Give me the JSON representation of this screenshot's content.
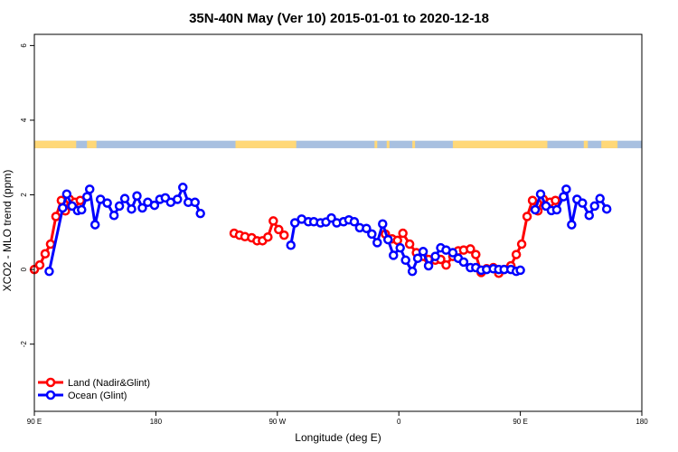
{
  "chart_data": {
    "type": "line",
    "title": "35N-40N May (Ver 10)   2015-01-01 to 2020-12-18",
    "xlabel": "Longitude (deg E)",
    "ylabel": "XCO2 - MLO trend (ppm)",
    "xlim": [
      90,
      540
    ],
    "ylim": [
      -3.8,
      6.3
    ],
    "x_ticks": [
      {
        "value": 90,
        "label": "90 E"
      },
      {
        "value": 180,
        "label": "180"
      },
      {
        "value": 270,
        "label": "90 W"
      },
      {
        "value": 360,
        "label": "0"
      },
      {
        "value": 450,
        "label": "90 E"
      },
      {
        "value": 540,
        "label": "180"
      }
    ],
    "y_ticks": [
      {
        "value": -2,
        "label": "-2"
      },
      {
        "value": 0,
        "label": "0"
      },
      {
        "value": 2,
        "label": "2"
      },
      {
        "value": 4,
        "label": "4"
      },
      {
        "value": 6,
        "label": "6"
      }
    ],
    "grid": false,
    "legend_position": "bottom-left",
    "land_ocean_bar": {
      "y_range": [
        3.25,
        3.45
      ],
      "land_color": "#FFD878",
      "ocean_color": "#A8C0E0",
      "land_segments": [
        [
          90,
          121
        ],
        [
          104,
          106
        ],
        [
          116,
          118
        ],
        [
          129,
          136
        ],
        [
          239,
          284
        ],
        [
          342,
          344
        ],
        [
          351,
          353
        ],
        [
          370,
          372
        ],
        [
          400,
          470
        ],
        [
          497,
          500
        ],
        [
          510,
          522
        ]
      ]
    },
    "series": [
      {
        "name": "Land (Nadir&Glint)",
        "color": "#FF0000",
        "segments": [
          [
            [
              90,
              0.0
            ],
            [
              94,
              0.12
            ],
            [
              98,
              0.42
            ],
            [
              102,
              0.68
            ],
            [
              106,
              1.42
            ],
            [
              110,
              1.85
            ],
            [
              113,
              1.57
            ],
            [
              116,
              1.88
            ],
            [
              120,
              1.8
            ],
            [
              124,
              1.85
            ]
          ],
          [
            [
              238,
              0.97
            ],
            [
              242,
              0.92
            ],
            [
              246,
              0.88
            ],
            [
              251,
              0.85
            ],
            [
              255,
              0.77
            ],
            [
              259,
              0.77
            ],
            [
              263,
              0.87
            ],
            [
              267,
              1.3
            ],
            [
              271,
              1.07
            ],
            [
              275,
              0.92
            ]
          ],
          [
            [
              350,
              0.95
            ],
            [
              355,
              0.82
            ],
            [
              359,
              0.78
            ],
            [
              363,
              0.97
            ],
            [
              368,
              0.68
            ],
            [
              373,
              0.45
            ],
            [
              378,
              0.35
            ],
            [
              382,
              0.27
            ],
            [
              387,
              0.25
            ],
            [
              391,
              0.27
            ],
            [
              395,
              0.12
            ],
            [
              400,
              0.35
            ],
            [
              404,
              0.5
            ],
            [
              408,
              0.52
            ],
            [
              413,
              0.55
            ],
            [
              417,
              0.4
            ],
            [
              421,
              -0.08
            ],
            [
              425,
              0.02
            ],
            [
              430,
              0.05
            ],
            [
              434,
              -0.1
            ],
            [
              438,
              0.0
            ],
            [
              443,
              0.1
            ],
            [
              447,
              0.4
            ],
            [
              451,
              0.68
            ],
            [
              455,
              1.42
            ],
            [
              459,
              1.85
            ],
            [
              463,
              1.57
            ],
            [
              467,
              1.88
            ],
            [
              472,
              1.8
            ],
            [
              476,
              1.85
            ]
          ]
        ]
      },
      {
        "name": "Ocean (Glint)",
        "color": "#0000FF",
        "segments": [
          [
            [
              101,
              -0.05
            ],
            [
              111,
              1.65
            ],
            [
              114,
              2.02
            ],
            [
              118,
              1.7
            ],
            [
              122,
              1.58
            ],
            [
              125,
              1.6
            ],
            [
              129,
              1.95
            ],
            [
              131,
              2.15
            ],
            [
              135,
              1.2
            ],
            [
              139,
              1.88
            ],
            [
              144,
              1.78
            ],
            [
              149,
              1.45
            ],
            [
              153,
              1.7
            ],
            [
              157,
              1.9
            ],
            [
              162,
              1.62
            ],
            [
              166,
              1.97
            ],
            [
              170,
              1.65
            ],
            [
              174,
              1.8
            ],
            [
              179,
              1.72
            ],
            [
              183,
              1.88
            ],
            [
              187,
              1.92
            ],
            [
              191,
              1.8
            ],
            [
              196,
              1.88
            ],
            [
              200,
              2.2
            ],
            [
              204,
              1.8
            ],
            [
              209,
              1.8
            ],
            [
              213,
              1.5
            ]
          ],
          [
            [
              280,
              0.65
            ],
            [
              283,
              1.25
            ],
            [
              288,
              1.35
            ],
            [
              293,
              1.28
            ],
            [
              297,
              1.28
            ],
            [
              302,
              1.25
            ],
            [
              306,
              1.27
            ],
            [
              310,
              1.38
            ],
            [
              314,
              1.25
            ],
            [
              319,
              1.28
            ],
            [
              323,
              1.33
            ],
            [
              327,
              1.28
            ],
            [
              331,
              1.12
            ],
            [
              336,
              1.1
            ],
            [
              340,
              0.95
            ],
            [
              344,
              0.72
            ],
            [
              348,
              1.22
            ],
            [
              352,
              0.8
            ],
            [
              356,
              0.38
            ],
            [
              361,
              0.58
            ],
            [
              365,
              0.25
            ],
            [
              370,
              -0.05
            ],
            [
              374,
              0.3
            ],
            [
              378,
              0.48
            ],
            [
              382,
              0.1
            ],
            [
              387,
              0.35
            ],
            [
              391,
              0.58
            ],
            [
              395,
              0.52
            ],
            [
              400,
              0.45
            ],
            [
              404,
              0.3
            ],
            [
              408,
              0.2
            ],
            [
              413,
              0.05
            ],
            [
              417,
              0.05
            ],
            [
              421,
              -0.02
            ],
            [
              425,
              0.0
            ],
            [
              430,
              0.02
            ],
            [
              434,
              0.0
            ],
            [
              438,
              0.0
            ],
            [
              443,
              0.0
            ],
            [
              447,
              -0.05
            ],
            [
              450,
              -0.02
            ]
          ],
          [
            [
              461,
              1.6
            ],
            [
              465,
              2.02
            ],
            [
              469,
              1.7
            ],
            [
              473,
              1.58
            ],
            [
              477,
              1.6
            ],
            [
              482,
              1.95
            ],
            [
              484,
              2.15
            ],
            [
              488,
              1.2
            ],
            [
              492,
              1.88
            ],
            [
              496,
              1.78
            ],
            [
              501,
              1.45
            ],
            [
              505,
              1.7
            ],
            [
              509,
              1.9
            ],
            [
              514,
              1.62
            ]
          ]
        ]
      }
    ]
  }
}
